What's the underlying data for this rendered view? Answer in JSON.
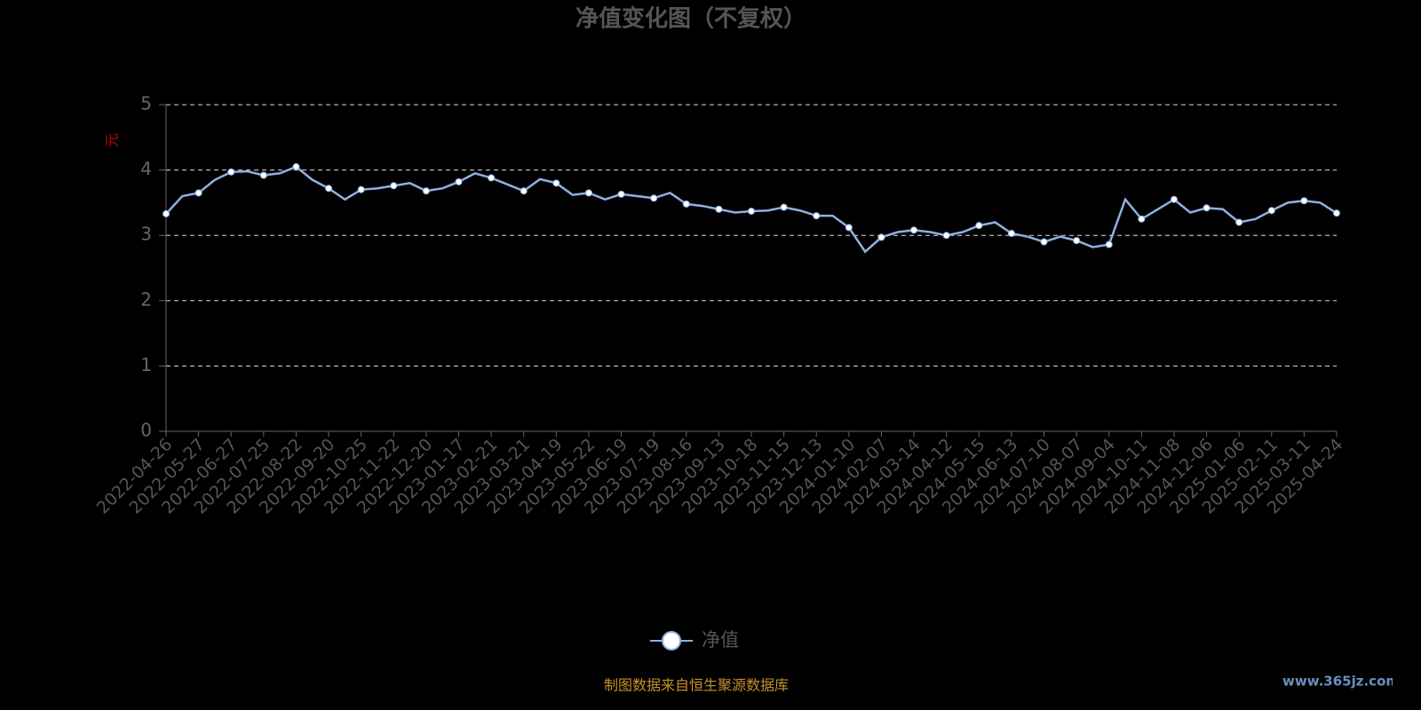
{
  "chart_data": {
    "type": "line",
    "title": "净值变化图（不复权）",
    "y_label": "元",
    "footer": "制图数据来自恒生聚源数据库",
    "watermark": "www.365jz.com",
    "categories": [
      "2022-04-26",
      null,
      "2022-05-27",
      null,
      "2022-06-27",
      null,
      "2022-07-25",
      null,
      "2022-08-22",
      null,
      "2022-09-20",
      null,
      "2022-10-25",
      null,
      "2022-11-22",
      null,
      "2022-12-20",
      null,
      "2023-01-17",
      null,
      "2023-02-21",
      null,
      "2023-03-21",
      null,
      "2023-04-19",
      null,
      "2023-05-22",
      null,
      "2023-06-19",
      null,
      "2023-07-19",
      null,
      "2023-08-16",
      null,
      "2023-09-13",
      null,
      "2023-10-18",
      null,
      "2023-11-15",
      null,
      "2023-12-13",
      null,
      "2024-01-10",
      null,
      "2024-02-07",
      null,
      "2024-03-14",
      null,
      "2024-04-12",
      null,
      "2024-05-15",
      null,
      "2024-06-13",
      null,
      "2024-07-10",
      null,
      "2024-08-07",
      null,
      "2024-09-04",
      null,
      "2024-10-11",
      null,
      "2024-11-08",
      null,
      "2024-12-06",
      null,
      "2025-01-06",
      null,
      "2025-02-11",
      null,
      "2025-03-11",
      null,
      "2025-04-24"
    ],
    "series": [
      {
        "name": "净值",
        "color": "#8fb1e0",
        "values": [
          3.33,
          3.6,
          3.65,
          3.85,
          3.97,
          3.98,
          3.92,
          3.95,
          4.05,
          3.85,
          3.72,
          3.55,
          3.7,
          3.72,
          3.76,
          3.8,
          3.68,
          3.72,
          3.82,
          3.95,
          3.88,
          3.78,
          3.68,
          3.86,
          3.8,
          3.62,
          3.65,
          3.55,
          3.63,
          3.6,
          3.57,
          3.65,
          3.48,
          3.45,
          3.4,
          3.35,
          3.37,
          3.38,
          3.43,
          3.38,
          3.3,
          3.3,
          3.12,
          2.75,
          2.97,
          3.05,
          3.08,
          3.05,
          3.0,
          3.05,
          3.15,
          3.2,
          3.03,
          2.98,
          2.9,
          2.98,
          2.92,
          2.82,
          2.86,
          3.55,
          3.25,
          3.4,
          3.55,
          3.35,
          3.42,
          3.4,
          3.2,
          3.25,
          3.38,
          3.5,
          3.53,
          3.5,
          3.34
        ]
      }
    ],
    "ylim": [
      0,
      5
    ],
    "yticks": [
      0,
      1,
      2,
      3,
      4,
      5
    ],
    "grid": true
  }
}
